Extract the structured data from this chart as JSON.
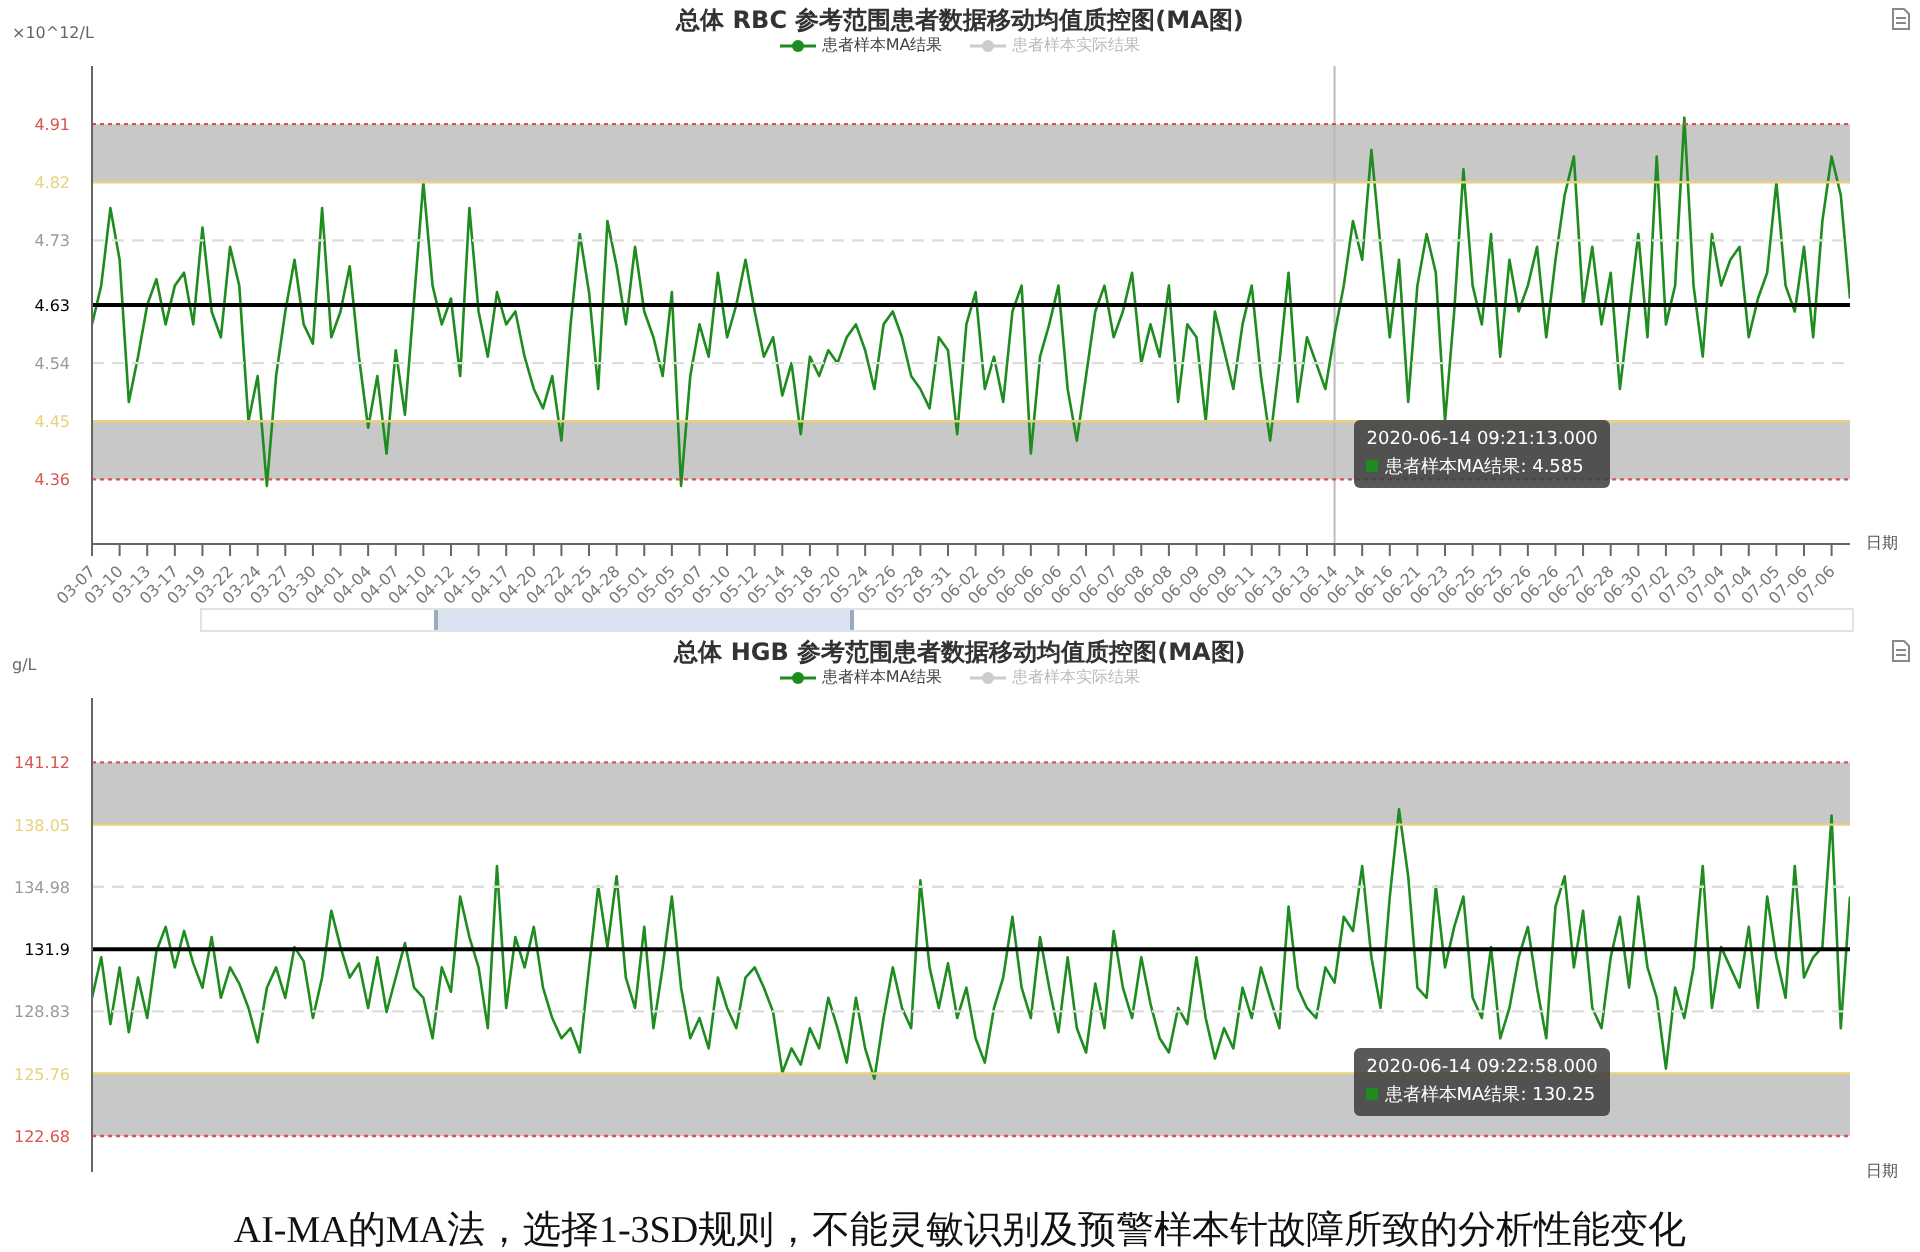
{
  "chart_data": [
    {
      "type": "line",
      "title": "总体 RBC 参考范围患者数据移动均值质控图(MA图)",
      "ylabel": "×10^12/L",
      "xlabel": "日期",
      "legend": "top",
      "categories": [
        "03-07",
        null,
        null,
        "03-10",
        null,
        null,
        "03-13",
        null,
        null,
        "03-17",
        null,
        null,
        "03-19",
        null,
        null,
        "03-22",
        null,
        null,
        "03-24",
        null,
        null,
        "03-27",
        null,
        null,
        "03-30",
        null,
        null,
        "04-01",
        null,
        null,
        "04-04",
        null,
        null,
        "04-07",
        null,
        null,
        "04-10",
        null,
        null,
        "04-12",
        null,
        null,
        "04-15",
        null,
        null,
        "04-17",
        null,
        null,
        "04-20",
        null,
        null,
        "04-22",
        null,
        null,
        "04-25",
        null,
        null,
        "04-28",
        null,
        null,
        "05-01",
        null,
        null,
        "05-05",
        null,
        null,
        "05-07",
        null,
        null,
        "05-10",
        null,
        null,
        "05-12",
        null,
        null,
        "05-14",
        null,
        null,
        "05-18",
        null,
        null,
        "05-20",
        null,
        null,
        "05-24",
        null,
        null,
        "05-26",
        null,
        null,
        "05-28",
        null,
        null,
        "05-31",
        null,
        null,
        "06-02",
        null,
        null,
        "06-05",
        null,
        null,
        "06-06",
        null,
        null,
        "06-06",
        null,
        null,
        "06-07",
        null,
        null,
        "06-07",
        null,
        null,
        "06-08",
        null,
        null,
        "06-08",
        null,
        null,
        "06-09",
        null,
        null,
        "06-09",
        null,
        null,
        "06-11",
        null,
        null,
        "06-13",
        null,
        null,
        "06-13",
        null,
        null,
        "06-14",
        null,
        null,
        "06-14",
        null,
        null,
        "06-16",
        null,
        null,
        "06-21",
        null,
        null,
        "06-23",
        null,
        null,
        "06-25",
        null,
        null,
        "06-25",
        null,
        null,
        "06-26",
        null,
        null,
        "06-26",
        null,
        null,
        "06-27",
        null,
        null,
        "06-28",
        null,
        null,
        "06-30",
        null,
        null,
        "07-02",
        null,
        null,
        "07-03",
        null,
        null,
        "07-04",
        null,
        null,
        "07-04",
        null,
        null,
        "07-05",
        null,
        null,
        "07-06",
        null,
        null,
        "07-06",
        null,
        null
      ],
      "series": [
        {
          "name": "患者样本MA结果",
          "color": "#1e8c1e",
          "values": [
            4.6,
            4.66,
            4.78,
            4.7,
            4.48,
            4.55,
            4.63,
            4.67,
            4.6,
            4.66,
            4.68,
            4.6,
            4.75,
            4.62,
            4.58,
            4.72,
            4.66,
            4.45,
            4.52,
            4.35,
            4.52,
            4.62,
            4.7,
            4.6,
            4.57,
            4.78,
            4.58,
            4.62,
            4.69,
            4.55,
            4.44,
            4.52,
            4.4,
            4.56,
            4.46,
            4.64,
            4.82,
            4.66,
            4.6,
            4.64,
            4.52,
            4.78,
            4.62,
            4.55,
            4.65,
            4.6,
            4.62,
            4.55,
            4.5,
            4.47,
            4.52,
            4.42,
            4.6,
            4.74,
            4.65,
            4.5,
            4.76,
            4.69,
            4.6,
            4.72,
            4.62,
            4.58,
            4.52,
            4.65,
            4.35,
            4.52,
            4.6,
            4.55,
            4.68,
            4.58,
            4.63,
            4.7,
            4.62,
            4.55,
            4.58,
            4.49,
            4.54,
            4.43,
            4.55,
            4.52,
            4.56,
            4.54,
            4.58,
            4.6,
            4.56,
            4.5,
            4.6,
            4.62,
            4.58,
            4.52,
            4.5,
            4.47,
            4.58,
            4.56,
            4.43,
            4.6,
            4.65,
            4.5,
            4.55,
            4.48,
            4.62,
            4.66,
            4.4,
            4.55,
            4.6,
            4.66,
            4.5,
            4.42,
            4.52,
            4.62,
            4.66,
            4.58,
            4.62,
            4.68,
            4.54,
            4.6,
            4.55,
            4.66,
            4.48,
            4.6,
            4.58,
            4.45,
            4.62,
            4.56,
            4.5,
            4.6,
            4.66,
            4.52,
            4.42,
            4.54,
            4.68,
            4.48,
            4.58,
            4.54,
            4.5,
            4.585,
            4.66,
            4.76,
            4.7,
            4.87,
            4.72,
            4.58,
            4.7,
            4.48,
            4.66,
            4.74,
            4.68,
            4.45,
            4.62,
            4.84,
            4.66,
            4.6,
            4.74,
            4.55,
            4.7,
            4.62,
            4.66,
            4.72,
            4.58,
            4.7,
            4.8,
            4.86,
            4.63,
            4.72,
            4.6,
            4.68,
            4.5,
            4.62,
            4.74,
            4.58,
            4.86,
            4.6,
            4.66,
            4.92,
            4.66,
            4.55,
            4.74,
            4.66,
            4.7,
            4.72,
            4.58,
            4.64,
            4.68,
            4.82,
            4.66,
            4.62,
            4.72,
            4.58,
            4.76,
            4.86,
            4.8,
            4.64
          ]
        },
        {
          "name": "患者样本实际结果",
          "color": "#cccccc",
          "values": [
            null,
            null,
            null,
            null,
            null,
            null,
            null,
            null,
            null,
            null,
            null,
            null,
            null,
            null,
            null,
            null,
            null,
            null,
            null,
            null,
            null,
            null,
            null,
            null,
            null,
            null,
            null,
            null,
            null,
            null,
            null,
            null,
            null,
            null,
            null,
            null,
            null,
            null,
            null,
            null,
            null,
            null,
            null,
            null,
            null,
            null,
            null,
            null,
            null,
            null,
            null,
            null,
            null,
            null,
            null,
            null,
            null,
            null,
            null,
            null,
            null,
            null,
            null,
            null,
            null,
            null,
            null,
            null,
            null,
            null,
            null,
            null,
            null,
            null,
            null,
            null,
            null,
            null,
            null,
            null,
            null,
            null,
            null,
            null,
            null,
            null,
            null,
            null,
            null,
            null,
            null,
            null,
            null,
            null,
            null,
            null,
            null,
            null,
            null,
            null,
            null,
            null,
            null,
            null,
            null,
            null,
            null,
            null,
            null,
            null,
            null,
            null,
            null,
            null,
            null,
            null,
            null,
            null,
            null,
            null,
            null,
            null,
            null,
            null,
            null,
            null,
            null,
            null,
            null,
            null,
            null,
            null,
            null,
            null,
            null,
            null,
            null,
            null,
            null,
            null,
            null,
            null,
            null,
            null,
            null,
            null,
            null,
            null,
            null,
            null,
            null,
            null,
            null,
            null,
            null,
            null,
            null,
            null,
            null,
            null,
            null,
            null,
            null,
            null,
            null,
            null,
            null,
            null,
            null,
            null,
            null,
            null,
            null,
            null,
            null,
            null,
            null,
            null,
            null,
            null,
            null,
            null,
            null,
            null,
            null,
            null,
            null,
            null,
            null,
            null,
            null,
            null
          ]
        }
      ],
      "ylim": [
        4.26,
        5.0
      ],
      "yticks": [
        4.36,
        4.45,
        4.54,
        4.63,
        4.73,
        4.82,
        4.91
      ],
      "bands": [
        {
          "axis": "y",
          "from": 4.82,
          "to": 4.91,
          "color": "#c8c8c8"
        },
        {
          "axis": "y",
          "from": 4.36,
          "to": 4.45,
          "color": "#c8c8c8"
        }
      ],
      "ref_lines": [
        {
          "axis": "y",
          "value": 4.91,
          "color": "#d9534f",
          "line_style": "dotted"
        },
        {
          "axis": "y",
          "value": 4.82,
          "color": "#e6d27a",
          "line_style": "solid"
        },
        {
          "axis": "y",
          "value": 4.73,
          "color": "#dddddd",
          "line_style": "dashed"
        },
        {
          "axis": "y",
          "value": 4.63,
          "color": "#000000",
          "line_style": "solid"
        },
        {
          "axis": "y",
          "value": 4.54,
          "color": "#dddddd",
          "line_style": "dashed"
        },
        {
          "axis": "y",
          "value": 4.45,
          "color": "#e6d27a",
          "line_style": "solid"
        },
        {
          "axis": "y",
          "value": 4.36,
          "color": "#d9534f",
          "line_style": "dotted"
        },
        {
          "axis": "x",
          "value": "06-14",
          "color": "#bbbbbb",
          "line_style": "solid"
        }
      ],
      "annotations": [
        "2020-06-14 09:21:13.000\n患者样本MA结果: 4.585"
      ]
    },
    {
      "type": "line",
      "title": "总体 HGB 参考范围患者数据移动均值质控图(MA图)",
      "ylabel": "g/L",
      "xlabel": "日期",
      "legend": "top",
      "tick_labels": "y",
      "categories": [
        "03-07",
        null,
        null,
        "03-10",
        null,
        null,
        "03-13",
        null,
        null,
        "03-17",
        null,
        null,
        "03-19",
        null,
        null,
        "03-22",
        null,
        null,
        "03-24",
        null,
        null,
        "03-27",
        null,
        null,
        "03-30",
        null,
        null,
        "04-01",
        null,
        null,
        "04-04",
        null,
        null,
        "04-07",
        null,
        null,
        "04-10",
        null,
        null,
        "04-12",
        null,
        null,
        "04-15",
        null,
        null,
        "04-17",
        null,
        null,
        "04-20",
        null,
        null,
        "04-22",
        null,
        null,
        "04-25",
        null,
        null,
        "04-28",
        null,
        null,
        "05-01",
        null,
        null,
        "05-05",
        null,
        null,
        "05-07",
        null,
        null,
        "05-10",
        null,
        null,
        "05-12",
        null,
        null,
        "05-14",
        null,
        null,
        "05-18",
        null,
        null,
        "05-20",
        null,
        null,
        "05-24",
        null,
        null,
        "05-26",
        null,
        null,
        "05-28",
        null,
        null,
        "05-31",
        null,
        null,
        "06-02",
        null,
        null,
        "06-05",
        null,
        null,
        "06-06",
        null,
        null,
        "06-06",
        null,
        null,
        "06-07",
        null,
        null,
        "06-07",
        null,
        null,
        "06-08",
        null,
        null,
        "06-08",
        null,
        null,
        "06-09",
        null,
        null,
        "06-09",
        null,
        null,
        "06-11",
        null,
        null,
        "06-13",
        null,
        null,
        "06-13",
        null,
        null,
        "06-14",
        null,
        null,
        "06-14",
        null,
        null,
        "06-16",
        null,
        null,
        "06-21",
        null,
        null,
        "06-23",
        null,
        null,
        "06-25",
        null,
        null,
        "06-25",
        null,
        null,
        "06-26",
        null,
        null,
        "06-26",
        null,
        null,
        "06-27",
        null,
        null,
        "06-28",
        null,
        null,
        "06-30",
        null,
        null,
        "07-02",
        null,
        null,
        "07-03",
        null,
        null,
        "07-04",
        null,
        null,
        "07-04",
        null,
        null,
        "07-05",
        null,
        null,
        "07-06",
        null,
        null,
        "07-06",
        null,
        null
      ],
      "series": [
        {
          "name": "患者样本MA结果",
          "color": "#1e8c1e",
          "values": [
            129.5,
            131.5,
            128.2,
            131.0,
            127.8,
            130.5,
            128.5,
            131.8,
            133.0,
            131.0,
            132.8,
            131.2,
            130.0,
            132.5,
            129.5,
            131.0,
            130.2,
            129.0,
            127.3,
            130.0,
            131.0,
            129.5,
            132.0,
            131.3,
            128.5,
            130.5,
            133.8,
            132.0,
            130.5,
            131.2,
            129.0,
            131.5,
            128.8,
            130.5,
            132.2,
            130.0,
            129.5,
            127.5,
            131.0,
            129.8,
            134.5,
            132.5,
            131.0,
            128.0,
            136.0,
            129.0,
            132.5,
            131.0,
            133.0,
            130.0,
            128.5,
            127.5,
            128.0,
            126.8,
            131.0,
            135.0,
            132.0,
            135.5,
            130.5,
            129.0,
            133.0,
            128.0,
            131.0,
            134.5,
            130.0,
            127.5,
            128.5,
            127.0,
            130.5,
            129.0,
            128.0,
            130.5,
            131.0,
            130.0,
            128.8,
            125.8,
            127.0,
            126.2,
            128.0,
            127.0,
            129.5,
            128.0,
            126.3,
            129.5,
            127.0,
            125.5,
            128.5,
            131.0,
            129.0,
            128.0,
            135.3,
            131.0,
            129.0,
            131.2,
            128.5,
            130.0,
            127.5,
            126.3,
            129.0,
            130.5,
            133.5,
            130.0,
            128.5,
            132.5,
            130.0,
            127.8,
            131.5,
            128.0,
            126.8,
            130.2,
            128.0,
            132.8,
            130.0,
            128.5,
            131.5,
            129.2,
            127.5,
            126.8,
            129.0,
            128.2,
            131.5,
            128.5,
            126.5,
            128.0,
            127.0,
            130.0,
            128.5,
            131.0,
            129.5,
            128.0,
            134.0,
            130.0,
            129.0,
            128.5,
            131.0,
            130.25,
            133.5,
            132.8,
            136.0,
            131.5,
            129.0,
            134.5,
            138.8,
            135.5,
            130.0,
            129.5,
            135.0,
            131.0,
            133.0,
            134.5,
            129.5,
            128.5,
            132.0,
            127.5,
            129.0,
            131.5,
            133.0,
            130.0,
            127.5,
            134.0,
            135.5,
            131.0,
            133.8,
            129.0,
            128.0,
            131.5,
            133.5,
            130.0,
            134.5,
            131.0,
            129.5,
            126.0,
            130.0,
            128.5,
            131.0,
            136.0,
            129.0,
            132.0,
            131.0,
            130.0,
            133.0,
            129.0,
            134.5,
            131.5,
            129.5,
            136.0,
            130.5,
            131.5,
            132.0,
            138.5,
            128.0,
            134.5
          ]
        },
        {
          "name": "患者样本实际结果",
          "color": "#cccccc",
          "values": [
            null,
            null,
            null,
            null,
            null,
            null,
            null,
            null,
            null,
            null,
            null,
            null,
            null,
            null,
            null,
            null,
            null,
            null,
            null,
            null,
            null,
            null,
            null,
            null,
            null,
            null,
            null,
            null,
            null,
            null,
            null,
            null,
            null,
            null,
            null,
            null,
            null,
            null,
            null,
            null,
            null,
            null,
            null,
            null,
            null,
            null,
            null,
            null,
            null,
            null,
            null,
            null,
            null,
            null,
            null,
            null,
            null,
            null,
            null,
            null,
            null,
            null,
            null,
            null,
            null,
            null,
            null,
            null,
            null,
            null,
            null,
            null,
            null,
            null,
            null,
            null,
            null,
            null,
            null,
            null,
            null,
            null,
            null,
            null,
            null,
            null,
            null,
            null,
            null,
            null,
            null,
            null,
            null,
            null,
            null,
            null,
            null,
            null,
            null,
            null,
            null,
            null,
            null,
            null,
            null,
            null,
            null,
            null,
            null,
            null,
            null,
            null,
            null,
            null,
            null,
            null,
            null,
            null,
            null,
            null,
            null,
            null,
            null,
            null,
            null,
            null,
            null,
            null,
            null,
            null,
            null,
            null,
            null,
            null,
            null,
            null,
            null,
            null,
            null,
            null,
            null,
            null,
            null,
            null,
            null,
            null,
            null,
            null,
            null,
            null,
            null,
            null,
            null,
            null,
            null,
            null,
            null,
            null,
            null,
            null,
            null,
            null,
            null,
            null,
            null,
            null,
            null,
            null,
            null,
            null,
            null,
            null,
            null,
            null,
            null,
            null,
            null,
            null,
            null,
            null,
            null,
            null,
            null,
            null,
            null,
            null,
            null,
            null,
            null,
            null,
            null,
            null
          ]
        }
      ],
      "ylim": [
        120.9,
        144.3
      ],
      "yticks": [
        122.68,
        125.76,
        128.83,
        131.9,
        134.98,
        138.05,
        141.12
      ],
      "bands": [
        {
          "axis": "y",
          "from": 138.05,
          "to": 141.12,
          "color": "#c8c8c8"
        },
        {
          "axis": "y",
          "from": 122.68,
          "to": 125.76,
          "color": "#c8c8c8"
        }
      ],
      "ref_lines": [
        {
          "axis": "y",
          "value": 141.12,
          "color": "#d9534f",
          "line_style": "dotted"
        },
        {
          "axis": "y",
          "value": 138.05,
          "color": "#e6d27a",
          "line_style": "solid"
        },
        {
          "axis": "y",
          "value": 134.98,
          "color": "#dddddd",
          "line_style": "dashed"
        },
        {
          "axis": "y",
          "value": 131.9,
          "color": "#000000",
          "line_style": "solid"
        },
        {
          "axis": "y",
          "value": 128.83,
          "color": "#dddddd",
          "line_style": "dashed"
        },
        {
          "axis": "y",
          "value": 125.76,
          "color": "#e6d27a",
          "line_style": "solid"
        },
        {
          "axis": "y",
          "value": 122.68,
          "color": "#d9534f",
          "line_style": "dotted"
        }
      ],
      "annotations": [
        "2020-06-14 09:22:58.000\n患者样本MA结果: 130.25",
        "AI-MA的MA法，选择1-3SD规则，不能灵敏识别及预警样本针故障所致的分析性能变化"
      ]
    }
  ]
}
